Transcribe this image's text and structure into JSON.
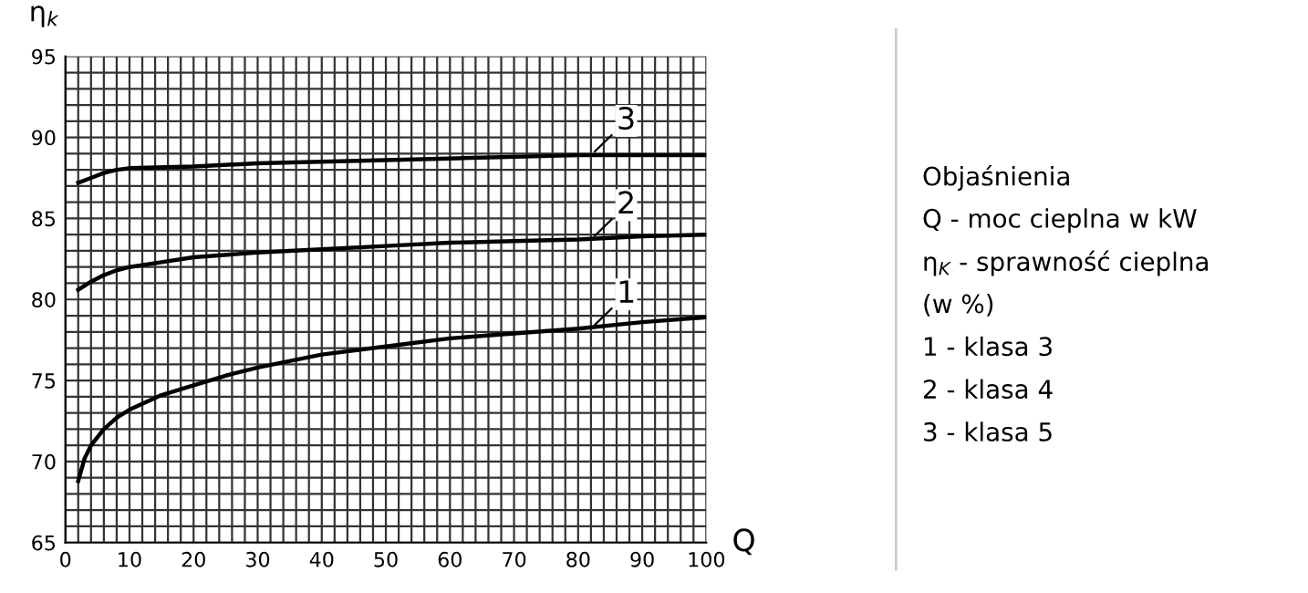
{
  "chart_data": {
    "type": "line",
    "xlabel": "Q",
    "ylabel": "η$_{k}$",
    "series": [
      {
        "name": "1",
        "color": "#000000",
        "x": [
          2,
          3,
          4,
          6,
          8,
          10,
          15,
          20,
          25,
          30,
          40,
          50,
          60,
          70,
          80,
          90,
          100
        ],
        "values": [
          68.8,
          70.2,
          71.0,
          72.0,
          72.7,
          73.2,
          74.1,
          74.7,
          75.3,
          75.8,
          76.6,
          77.1,
          77.6,
          77.9,
          78.2,
          78.6,
          78.9
        ]
      },
      {
        "name": "2",
        "color": "#000000",
        "x": [
          2,
          4,
          6,
          8,
          10,
          15,
          20,
          30,
          40,
          50,
          60,
          70,
          80,
          90,
          100
        ],
        "values": [
          80.6,
          81.1,
          81.5,
          81.8,
          82.0,
          82.3,
          82.6,
          82.9,
          83.1,
          83.3,
          83.5,
          83.6,
          83.7,
          83.9,
          84.0
        ]
      },
      {
        "name": "3",
        "color": "#000000",
        "x": [
          2,
          4,
          6,
          8,
          10,
          20,
          30,
          40,
          60,
          80,
          100
        ],
        "values": [
          87.2,
          87.5,
          87.8,
          88.0,
          88.1,
          88.2,
          88.4,
          88.5,
          88.7,
          88.9,
          88.9
        ]
      }
    ],
    "xlim": [
      0,
      100
    ],
    "ylim": [
      65,
      95
    ],
    "xticks": [
      0,
      10,
      20,
      30,
      40,
      50,
      60,
      70,
      80,
      90,
      100
    ],
    "yticks": [
      65,
      70,
      75,
      80,
      85,
      90,
      95
    ],
    "grid": true,
    "legend": false,
    "marker": "none",
    "line_style": "solid",
    "annotations": [
      "Objaśnienia",
      "Q - moc cieplna w kW",
      "η$_{K}$ - sprawność cieplna",
      "(w %)",
      "1 - klasa 3",
      "2 - klasa 4",
      "3 - klasa 5"
    ]
  }
}
